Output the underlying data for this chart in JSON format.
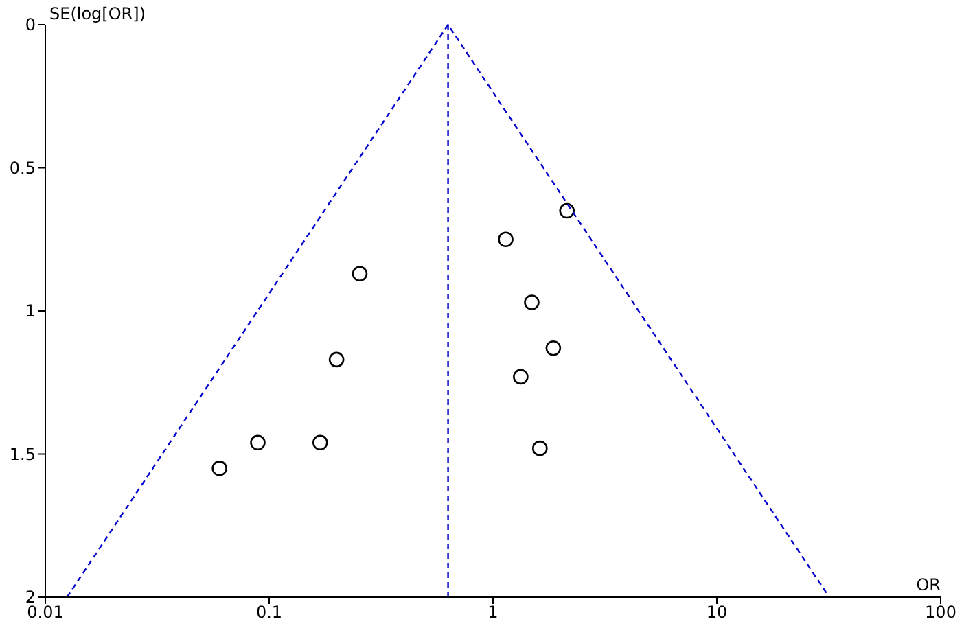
{
  "chart_data": {
    "type": "scatter",
    "xlabel": "OR",
    "ylabel": "SE(log[OR])",
    "log": "x",
    "xlim": [
      0.01,
      100
    ],
    "ylim": [
      2,
      0
    ],
    "xticks": [
      0.01,
      0.1,
      1,
      10,
      100
    ],
    "yticks": [
      0,
      0.5,
      1,
      1.5,
      2
    ],
    "series": [
      {
        "color": "#000000",
        "marker": "circle",
        "x": [
          2.14,
          1.14,
          0.254,
          1.49,
          1.86,
          0.2,
          1.33,
          0.089,
          0.169,
          1.62,
          0.06
        ],
        "values": [
          0.65,
          0.75,
          0.87,
          0.97,
          1.13,
          1.17,
          1.23,
          1.46,
          1.46,
          1.48,
          1.55
        ]
      },
      {
        "type": "line",
        "color": "#0000cc",
        "line_style": "dashed",
        "marker": "none",
        "x": [
          0.0125,
          0.63,
          31.8
        ],
        "values": [
          2,
          0,
          2
        ]
      }
    ],
    "ref_lines": [
      {
        "axis": "x",
        "value": 0.63,
        "color": "#0000cc",
        "line_style": "dashed"
      }
    ]
  }
}
